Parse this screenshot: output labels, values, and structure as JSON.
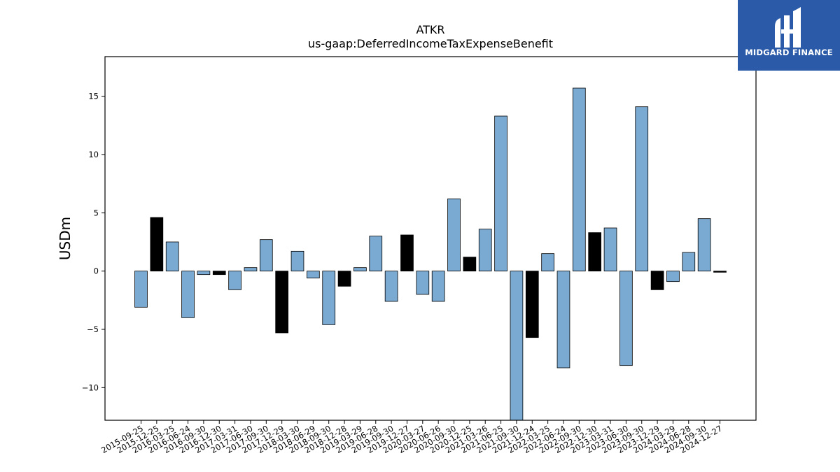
{
  "brand": {
    "name": "MIDGARD FINANCE",
    "logo_icon": "midgard-finance-logo-icon",
    "background_color": "#2b5aa8"
  },
  "chart_data": {
    "type": "bar",
    "title": "ATKR",
    "subtitle": "us-gaap:DeferredIncomeTaxExpenseBenefit",
    "xlabel": "",
    "ylabel": "USDm",
    "ylim": [
      -12.8,
      18.4
    ],
    "yticks": [
      -10,
      -5,
      0,
      5,
      10,
      15
    ],
    "grid": false,
    "colors": {
      "quarterly": "#7aaad2",
      "annual": "#000000",
      "edge": "#000000"
    },
    "categories": [
      "2015-09-25",
      "2015-12-25",
      "2016-03-25",
      "2016-06-24",
      "2016-09-30",
      "2016-12-30",
      "2017-03-31",
      "2017-06-30",
      "2017-09-30",
      "2017-12-29",
      "2018-03-30",
      "2018-06-29",
      "2018-09-30",
      "2018-12-28",
      "2019-03-29",
      "2019-06-28",
      "2019-09-30",
      "2019-12-27",
      "2020-03-27",
      "2020-06-26",
      "2020-09-30",
      "2020-12-25",
      "2021-03-26",
      "2021-06-25",
      "2021-09-30",
      "2021-12-24",
      "2022-03-25",
      "2022-06-24",
      "2022-09-30",
      "2022-12-30",
      "2023-03-31",
      "2023-06-30",
      "2023-09-30",
      "2023-12-29",
      "2024-03-29",
      "2024-06-28",
      "2024-09-30",
      "2024-12-27"
    ],
    "values": [
      -3.1,
      4.6,
      2.5,
      -4.0,
      -0.3,
      -0.3,
      -1.6,
      0.3,
      2.7,
      -5.3,
      1.7,
      -0.6,
      -4.6,
      -1.3,
      0.3,
      3.0,
      -2.6,
      3.1,
      -2.0,
      -2.6,
      6.2,
      1.2,
      3.6,
      13.3,
      -12.8,
      -5.7,
      1.5,
      -8.3,
      15.7,
      3.3,
      3.7,
      -8.1,
      14.1,
      -1.6,
      -0.9,
      1.6,
      4.5,
      -0.1
    ],
    "annual": [
      false,
      true,
      false,
      false,
      false,
      true,
      false,
      false,
      false,
      true,
      false,
      false,
      false,
      true,
      false,
      false,
      false,
      true,
      false,
      false,
      false,
      true,
      false,
      false,
      false,
      true,
      false,
      false,
      false,
      true,
      false,
      false,
      false,
      true,
      false,
      false,
      false,
      true
    ]
  }
}
